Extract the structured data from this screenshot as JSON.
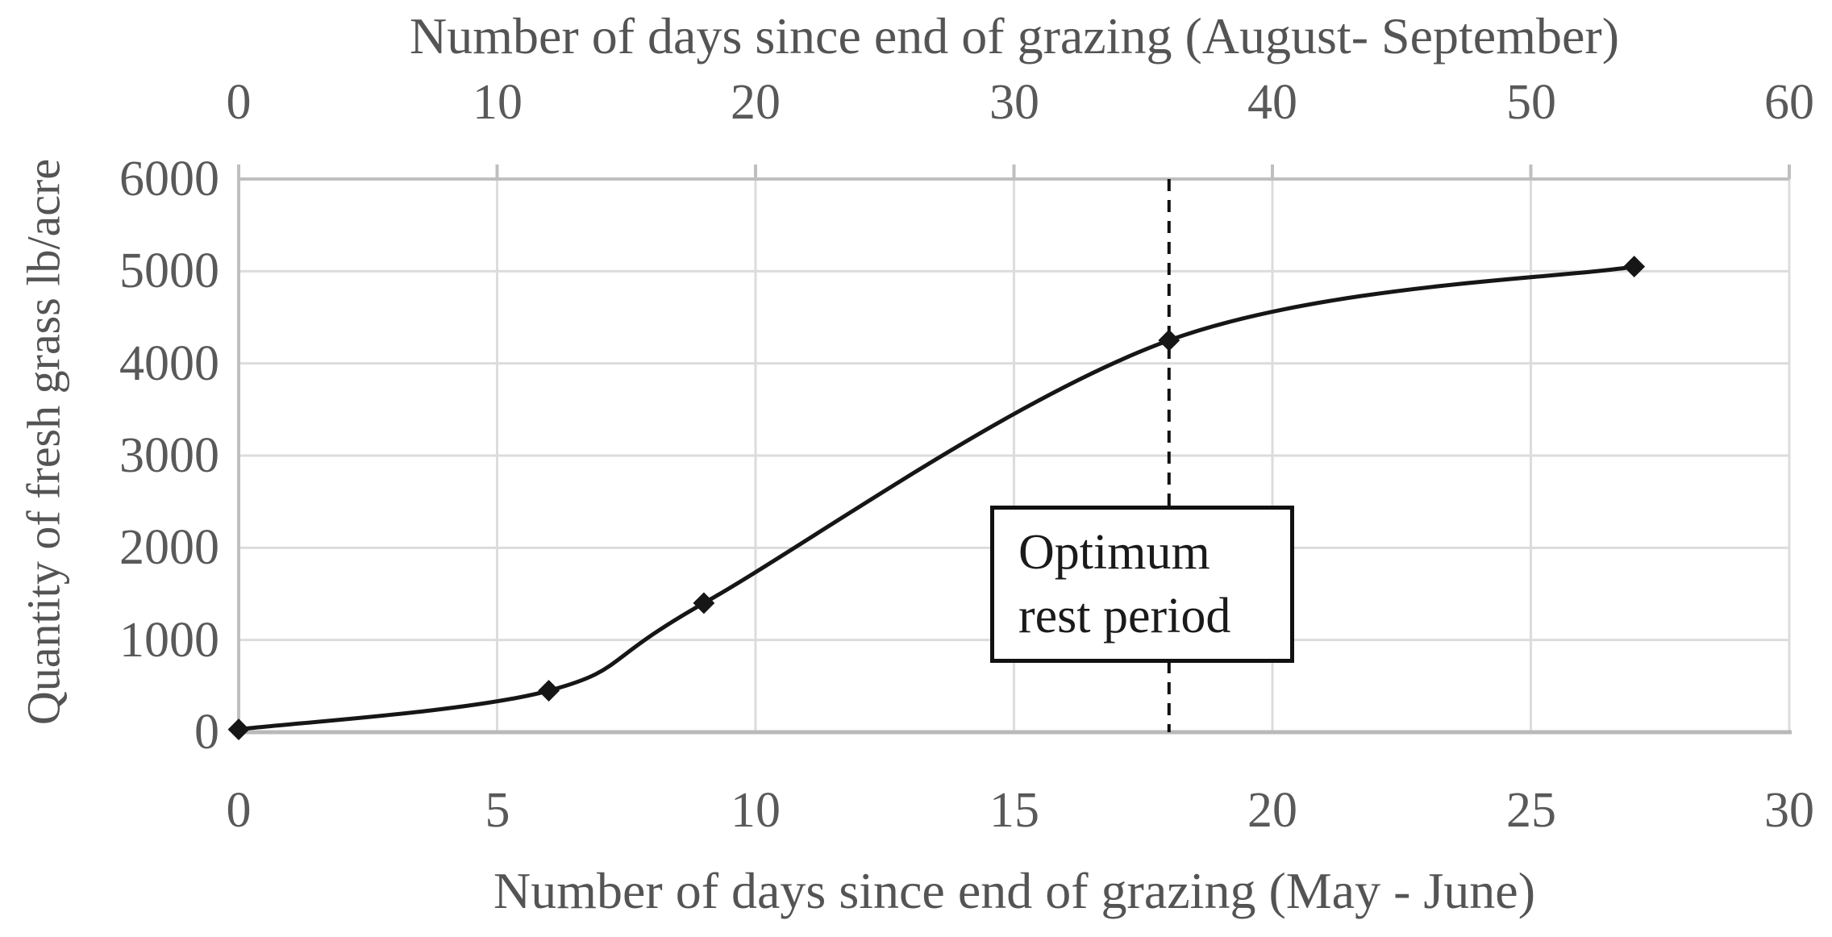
{
  "chart_data": {
    "type": "line",
    "title": "",
    "grid": true,
    "legend": false,
    "top_axis": {
      "label": "Number of days since end of grazing (August- September)",
      "ticks": [
        "0",
        "10",
        "20",
        "30",
        "40",
        "50",
        "60"
      ],
      "range": [
        0,
        60
      ]
    },
    "bottom_axis": {
      "label": "Number of days since end of grazing (May - June)",
      "ticks": [
        "0",
        "5",
        "10",
        "15",
        "20",
        "25",
        "30"
      ],
      "range": [
        0,
        30
      ]
    },
    "y_axis": {
      "label": "Quantity of fresh grass lb/acre",
      "ticks": [
        "0",
        "1000",
        "2000",
        "3000",
        "4000",
        "5000",
        "6000"
      ],
      "range": [
        0,
        6000
      ]
    },
    "series": [
      {
        "name": "Quantity of fresh grass",
        "x_days_may_june": [
          0,
          6,
          9,
          18,
          27
        ],
        "x_days_august_september": [
          0,
          12,
          18,
          36,
          54
        ],
        "y_lb_per_acre": [
          30,
          450,
          1400,
          4250,
          5050
        ],
        "marker": "diamond",
        "smooth": true
      }
    ],
    "annotation": {
      "text": "Optimum rest period",
      "at_day_bottom_axis": 18,
      "line_style": "dashed"
    },
    "colors": {
      "curve": "#161616",
      "marker": "#161616",
      "gridline": "#dcdcdc",
      "axis_line": "#bfbfbf",
      "bottom_axis_line": "#b9b9b9",
      "tick_text": "#595959",
      "title_text": "#545454",
      "dashed_line": "#111111",
      "annotation_text": "#1a1a1a",
      "annotation_border": "#111111",
      "background": "#ffffff"
    }
  }
}
